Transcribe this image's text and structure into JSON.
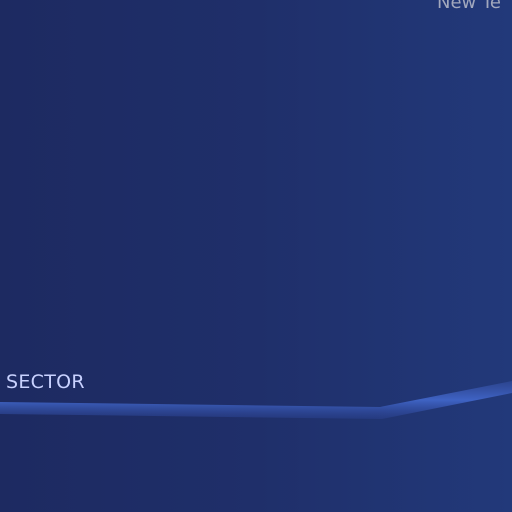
{
  "header": {
    "label": "New Te"
  },
  "section": {
    "label": "SECTOR"
  }
}
